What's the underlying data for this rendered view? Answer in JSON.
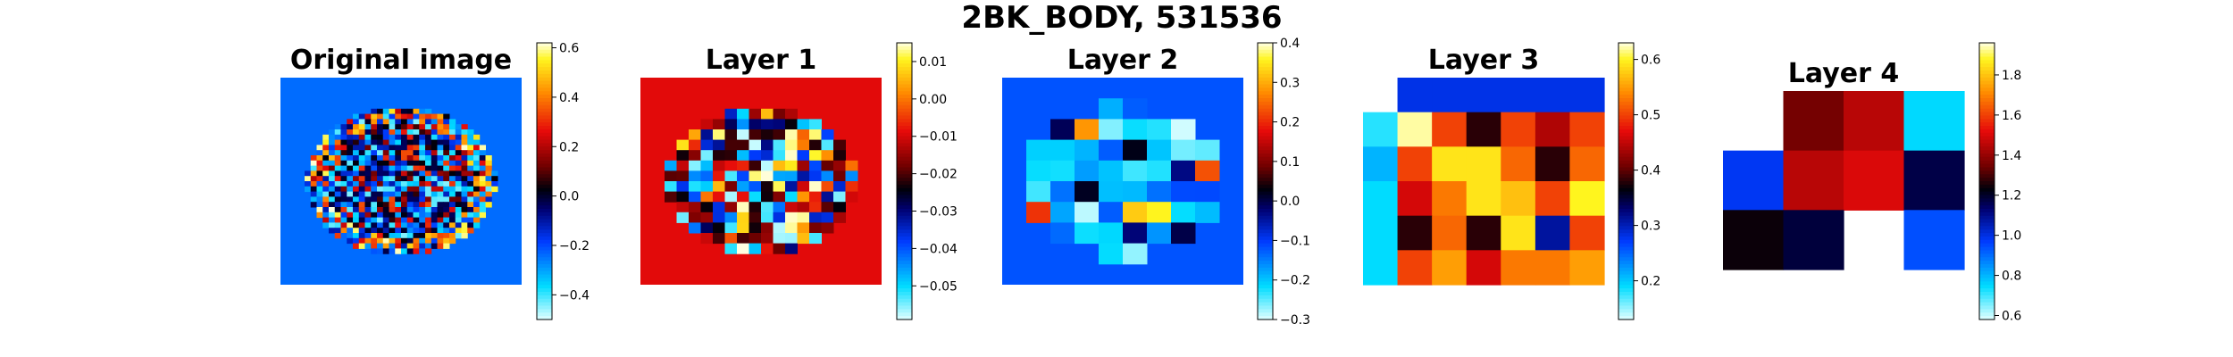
{
  "figure_title": "2BK_BODY, 531536",
  "chart_data": [
    {
      "type": "heatmap",
      "title": "Original image",
      "colormap": "cyan-blue-black-red-yellow",
      "vlim": [
        -0.5,
        0.62
      ],
      "colorbar_ticks": [
        "0.6",
        "0.4",
        "0.2",
        "0.0",
        "−0.2",
        "−0.4"
      ],
      "colorbar_tick_values": [
        0.6,
        0.4,
        0.2,
        0.0,
        -0.2,
        -0.4
      ],
      "background_value": -0.24,
      "grid_size": [
        40,
        40
      ],
      "content": "oval region of mixed positive and negative values, strongest at the rim"
    },
    {
      "type": "heatmap",
      "title": "Layer 1",
      "colormap": "cyan-blue-black-red-yellow",
      "vlim": [
        -0.059,
        0.015
      ],
      "colorbar_ticks": [
        "0.01",
        "0.00",
        "−0.01",
        "−0.02",
        "−0.03",
        "−0.04",
        "−0.05"
      ],
      "colorbar_tick_values": [
        0.01,
        0.0,
        -0.01,
        -0.02,
        -0.03,
        -0.04,
        -0.05
      ],
      "background_value": -0.009,
      "grid_size": [
        20,
        20
      ],
      "content": "oval region of mixed values on a dark red background"
    },
    {
      "type": "heatmap",
      "title": "Layer 2",
      "colormap": "cyan-blue-black-red-yellow",
      "vlim": [
        -0.3,
        0.4
      ],
      "colorbar_ticks": [
        "0.4",
        "0.3",
        "0.2",
        "0.1",
        "0.0",
        "−0.1",
        "−0.2",
        "−0.3"
      ],
      "colorbar_tick_values": [
        0.4,
        0.3,
        0.2,
        0.1,
        0.0,
        -0.1,
        -0.2,
        -0.3
      ],
      "background_value": -0.12,
      "grid_size": [
        10,
        10
      ],
      "content": "oval region of mostly negative values on a dark blue background"
    },
    {
      "type": "heatmap",
      "title": "Layer 3",
      "colormap": "cyan-blue-black-red-yellow",
      "vlim": [
        0.13,
        0.63
      ],
      "colorbar_ticks": [
        "0.6",
        "0.5",
        "0.4",
        "0.3",
        "0.2"
      ],
      "colorbar_tick_values": [
        0.6,
        0.5,
        0.4,
        0.3,
        0.2
      ],
      "cells": [
        [
          null,
          0.28,
          0.28,
          0.28,
          0.28,
          0.28,
          0.28
        ],
        [
          0.18,
          0.62,
          0.5,
          0.38,
          0.5,
          0.44,
          0.5
        ],
        [
          0.21,
          0.5,
          0.59,
          0.59,
          0.52,
          0.38,
          0.52
        ],
        [
          0.19,
          0.46,
          0.53,
          0.59,
          0.57,
          0.5,
          0.6
        ],
        [
          0.19,
          0.38,
          0.52,
          0.38,
          0.59,
          0.31,
          0.5
        ],
        [
          0.19,
          0.5,
          0.55,
          0.46,
          0.53,
          0.53,
          0.55
        ]
      ]
    },
    {
      "type": "heatmap",
      "title": "Layer 4",
      "colormap": "cyan-blue-black-red-yellow",
      "vlim": [
        0.58,
        1.96
      ],
      "colorbar_ticks": [
        "1.8",
        "1.6",
        "1.4",
        "1.2",
        "1.0",
        "0.8",
        "0.6"
      ],
      "colorbar_tick_values": [
        1.8,
        1.6,
        1.4,
        1.2,
        1.0,
        0.8,
        0.6
      ],
      "cells": [
        [
          null,
          1.35,
          1.45,
          0.75
        ],
        [
          0.98,
          1.45,
          1.5,
          1.17
        ],
        [
          1.24,
          1.18,
          null,
          0.94
        ]
      ]
    }
  ]
}
